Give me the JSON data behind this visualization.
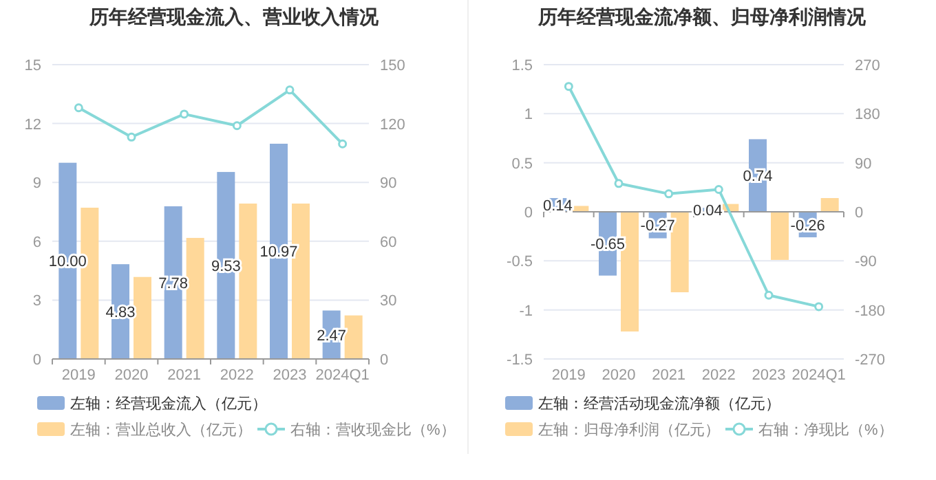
{
  "chart_data": [
    {
      "type": "bar",
      "title": "历年经营现金流入、营业收入情况",
      "categories": [
        "2019",
        "2020",
        "2021",
        "2022",
        "2023",
        "2024Q1"
      ],
      "series": [
        {
          "name": "左轴：经营现金流入（亿元）",
          "color": "#8eaedb",
          "values": [
            10.0,
            4.83,
            7.78,
            9.53,
            10.97,
            2.47
          ],
          "value_labels": [
            "10.00",
            "4.83",
            "7.78",
            "9.53",
            "10.97",
            "2.47"
          ]
        },
        {
          "name": "左轴：营业总收入（亿元）",
          "color": "#ffd899",
          "values": [
            7.71,
            4.18,
            6.17,
            7.92,
            7.92,
            2.22
          ]
        },
        {
          "name": "右轴：营收现金比（%）",
          "type": "line",
          "axis": "y2",
          "color": "#86d8d8",
          "marker": "circle",
          "values": [
            128.0,
            113.1,
            124.8,
            118.9,
            137.1,
            109.6
          ]
        }
      ],
      "ylim": [
        0,
        15
      ],
      "yticks": [
        0,
        3,
        6,
        9,
        12,
        15
      ],
      "y2lim": [
        0,
        150
      ],
      "y2ticks": [
        0,
        30,
        60,
        90,
        120,
        150
      ],
      "grid": "y",
      "legend": "bottom"
    },
    {
      "type": "bar",
      "title": "历年经营现金流净额、归母净利润情况",
      "categories": [
        "2019",
        "2020",
        "2021",
        "2022",
        "2023",
        "2024Q1"
      ],
      "series": [
        {
          "name": "左轴：经营活动现金流净额（亿元）",
          "color": "#8eaedb",
          "values": [
            0.14,
            -0.65,
            -0.27,
            0.04,
            0.74,
            -0.26
          ],
          "value_labels": [
            "0.14",
            "-0.65",
            "-0.27",
            "0.04",
            "0.74",
            "-0.26"
          ]
        },
        {
          "name": "左轴：归母净利润（亿元）",
          "color": "#ffd899",
          "values": [
            0.06,
            -1.22,
            -0.82,
            0.08,
            -0.49,
            0.14
          ]
        },
        {
          "name": "右轴：净现比（%）",
          "type": "line",
          "axis": "y2",
          "color": "#86d8d8",
          "marker": "circle",
          "values": [
            230,
            52,
            33,
            41,
            -153,
            -174
          ]
        }
      ],
      "ylim": [
        -1.5,
        1.5
      ],
      "yticks": [
        -1.5,
        -1,
        -0.5,
        0,
        0.5,
        1,
        1.5
      ],
      "y2lim": [
        -270,
        270
      ],
      "y2ticks": [
        -270,
        -180,
        -90,
        0,
        90,
        180,
        270
      ],
      "grid": "y",
      "legend": "bottom"
    }
  ]
}
